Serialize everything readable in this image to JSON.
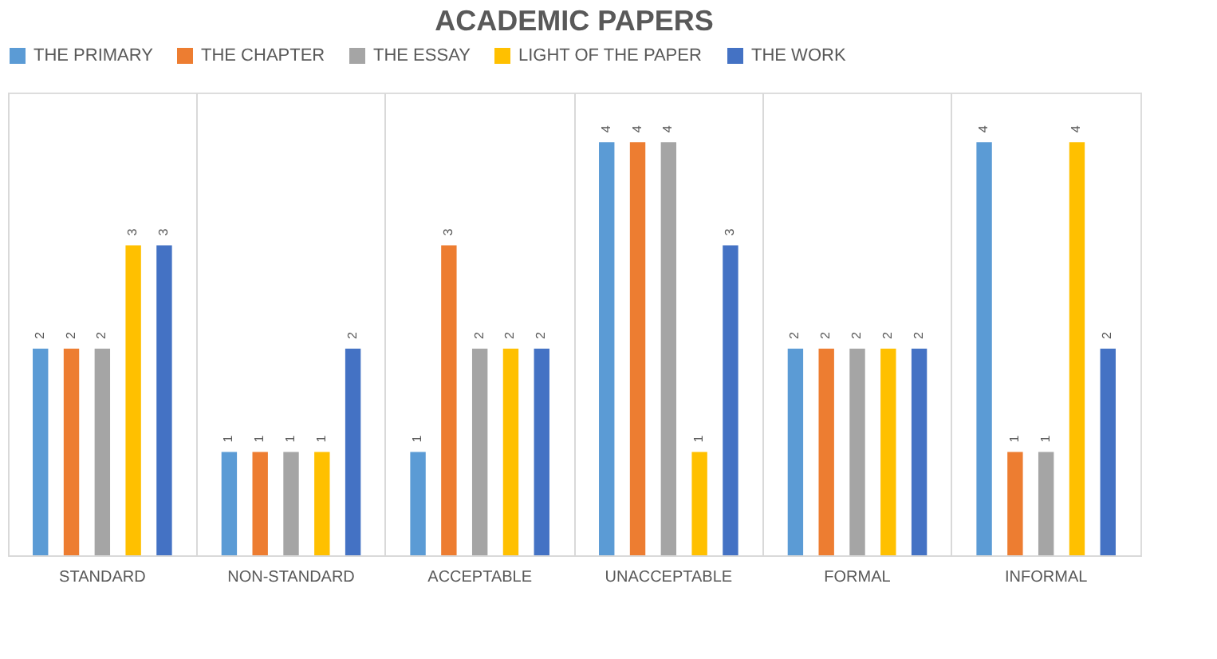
{
  "chart_data": {
    "type": "bar",
    "title": "ACADEMIC PAPERS",
    "categories": [
      "STANDARD",
      "NON-STANDARD",
      "ACCEPTABLE",
      "UNACCEPTABLE",
      "FORMAL",
      "INFORMAL"
    ],
    "series": [
      {
        "name": "THE PRIMARY",
        "color": "#5b9bd5",
        "values": [
          2,
          1,
          1,
          4,
          2,
          4
        ]
      },
      {
        "name": "THE CHAPTER",
        "color": "#ed7d31",
        "values": [
          2,
          1,
          3,
          4,
          2,
          1
        ]
      },
      {
        "name": "THE ESSAY",
        "color": "#a5a5a5",
        "values": [
          2,
          1,
          2,
          4,
          2,
          1
        ]
      },
      {
        "name": "LIGHT OF THE PAPER",
        "color": "#ffc000",
        "values": [
          3,
          1,
          2,
          1,
          2,
          4
        ]
      },
      {
        "name": "THE WORK",
        "color": "#4472c4",
        "values": [
          3,
          2,
          2,
          3,
          2,
          2
        ]
      }
    ],
    "data_labels": true,
    "grid": "x",
    "legend": "top",
    "tick_labels": "x"
  }
}
